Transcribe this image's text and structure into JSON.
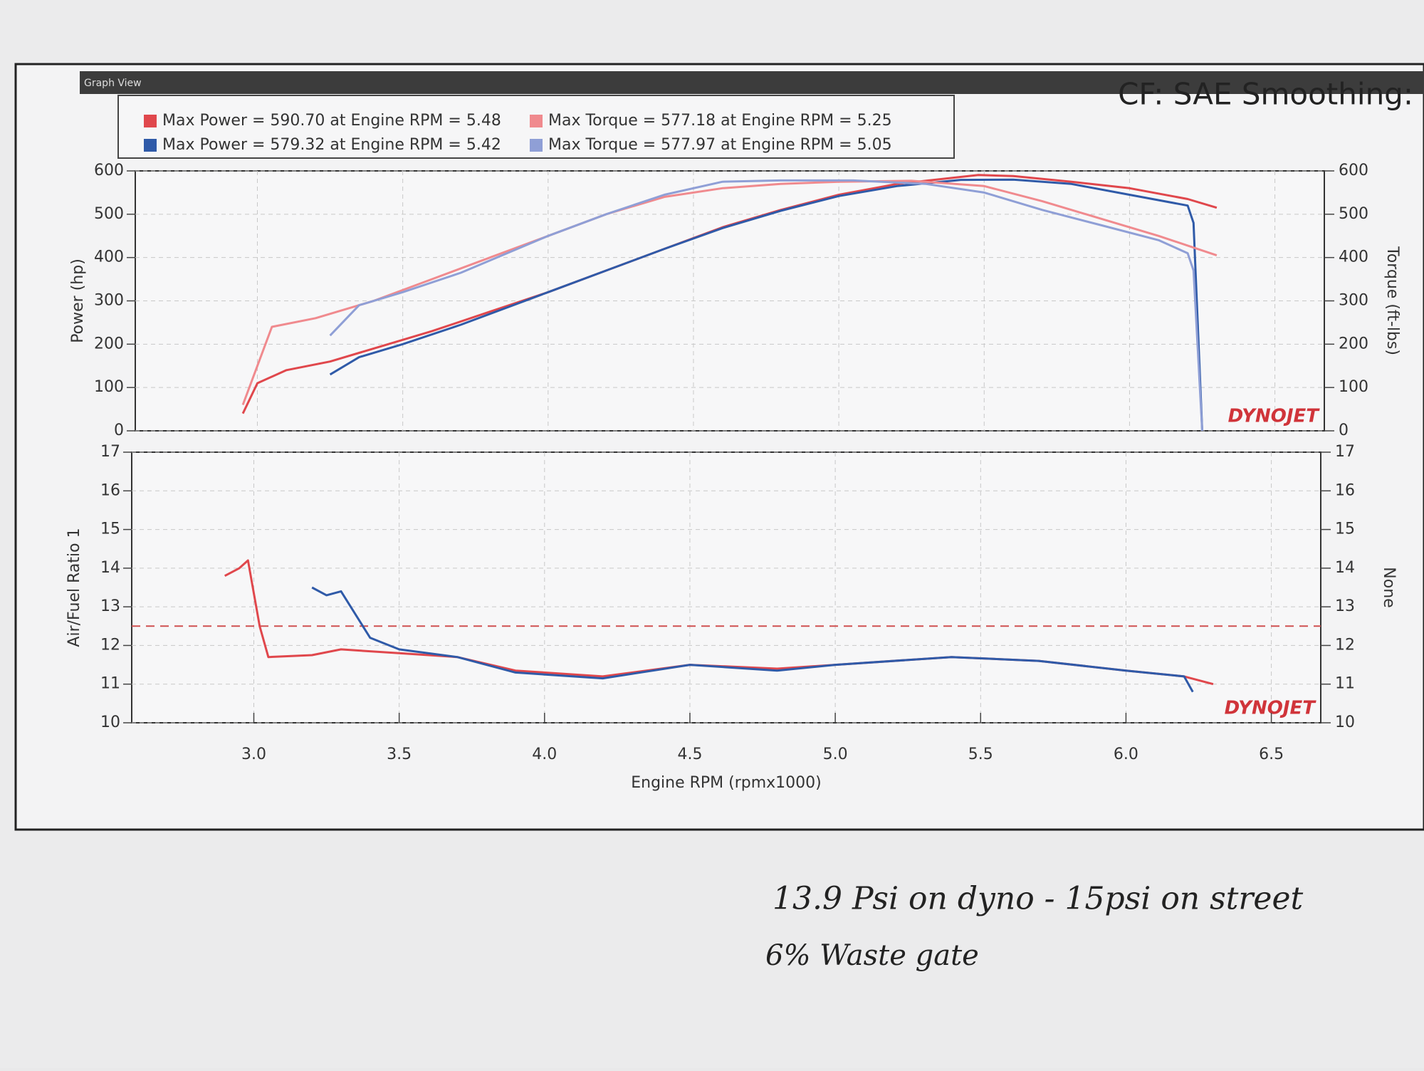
{
  "window_title": "Graph View",
  "header": "CF: SAE Smoothing:",
  "notes": [
    "13.9 Psi on dyno - 15psi on street",
    "6% Waste gate"
  ],
  "chart_data": [
    {
      "type": "line",
      "logo": "DYNOJET",
      "ylabel": "Power (hp)",
      "y2label": "Torque (ft-lbs)",
      "xlim": [
        2.58,
        6.67
      ],
      "ylim": [
        0,
        600
      ],
      "yticks": [
        0,
        100,
        200,
        300,
        400,
        500,
        600
      ],
      "y2lim": [
        0,
        600
      ],
      "y2ticks": [
        0,
        100,
        200,
        300,
        400,
        500,
        600
      ],
      "grid": true,
      "series": [
        {
          "name": "Max Power = 590.70 at Engine RPM = 5.48",
          "color": "#e0474c",
          "x": [
            2.95,
            3.0,
            3.1,
            3.25,
            3.4,
            3.6,
            3.8,
            4.0,
            4.2,
            4.4,
            4.6,
            4.8,
            5.0,
            5.2,
            5.48,
            5.6,
            5.8,
            6.0,
            6.2,
            6.3
          ],
          "values": [
            40,
            110,
            140,
            160,
            190,
            230,
            275,
            320,
            370,
            420,
            470,
            510,
            545,
            570,
            590.7,
            588,
            575,
            560,
            535,
            515
          ]
        },
        {
          "name": "Max Power = 579.32 at Engine RPM = 5.42",
          "color": "#2f5aa8",
          "x": [
            3.25,
            3.35,
            3.5,
            3.7,
            4.0,
            4.2,
            4.4,
            4.6,
            4.8,
            5.0,
            5.2,
            5.42,
            5.6,
            5.8,
            6.0,
            6.2,
            6.22,
            6.25
          ],
          "values": [
            130,
            170,
            200,
            245,
            320,
            370,
            420,
            468,
            508,
            542,
            565,
            579.3,
            580,
            570,
            545,
            520,
            480,
            0
          ]
        },
        {
          "name": "Max Torque = 577.18 at Engine RPM = 5.25",
          "color": "#f08a8e",
          "x": [
            2.95,
            3.05,
            3.2,
            3.4,
            3.6,
            3.8,
            4.0,
            4.2,
            4.4,
            4.6,
            4.8,
            5.0,
            5.25,
            5.5,
            5.7,
            5.9,
            6.1,
            6.3
          ],
          "values": [
            60,
            240,
            260,
            300,
            350,
            400,
            450,
            500,
            540,
            560,
            570,
            575,
            577.2,
            565,
            530,
            490,
            450,
            405
          ]
        },
        {
          "name": "Max Torque = 577.97 at Engine RPM = 5.05",
          "color": "#8f9fd6",
          "x": [
            3.25,
            3.35,
            3.5,
            3.7,
            4.0,
            4.2,
            4.4,
            4.6,
            4.8,
            5.05,
            5.3,
            5.5,
            5.7,
            5.9,
            6.1,
            6.2,
            6.22,
            6.25
          ],
          "values": [
            220,
            290,
            320,
            365,
            450,
            500,
            545,
            575,
            578,
            577.97,
            570,
            550,
            510,
            475,
            440,
            410,
            370,
            0
          ]
        }
      ]
    },
    {
      "type": "line",
      "logo": "DYNOJET",
      "xlabel": "Engine RPM (rpmx1000)",
      "ylabel": "Air/Fuel Ratio 1",
      "y2label": "None",
      "xlim": [
        2.58,
        6.67
      ],
      "xticks": [
        {
          "value": 3,
          "label": "3.0"
        },
        3.5,
        {
          "value": 4,
          "label": "4.0"
        },
        4.5,
        {
          "value": 5,
          "label": "5.0"
        },
        5.5,
        {
          "value": 6,
          "label": "6.0"
        },
        6.5
      ],
      "ylim": [
        10,
        17
      ],
      "yticks": [
        10,
        11,
        12,
        13,
        14,
        15,
        16,
        17
      ],
      "y2lim": [
        10,
        17
      ],
      "y2ticks": [
        10,
        11,
        12,
        13,
        14,
        15,
        16,
        17
      ],
      "grid": true,
      "reference_line": {
        "value": 12.5,
        "color": "#d05050"
      },
      "series": [
        {
          "color": "#e0474c",
          "x": [
            2.9,
            2.95,
            2.98,
            3.02,
            3.05,
            3.2,
            3.3,
            3.5,
            3.7,
            3.9,
            4.2,
            4.5,
            4.8,
            5.0,
            5.4,
            5.7,
            6.0,
            6.2,
            6.3
          ],
          "values": [
            13.8,
            14.0,
            14.2,
            12.5,
            11.7,
            11.75,
            11.9,
            11.8,
            11.7,
            11.35,
            11.2,
            11.5,
            11.4,
            11.5,
            11.7,
            11.6,
            11.35,
            11.2,
            11.0
          ]
        },
        {
          "color": "#2f5aa8",
          "x": [
            3.2,
            3.25,
            3.3,
            3.4,
            3.5,
            3.7,
            3.9,
            4.2,
            4.5,
            4.8,
            5.0,
            5.4,
            5.7,
            6.0,
            6.2,
            6.23
          ],
          "values": [
            13.5,
            13.3,
            13.4,
            12.2,
            11.9,
            11.7,
            11.3,
            11.15,
            11.5,
            11.35,
            11.5,
            11.7,
            11.6,
            11.35,
            11.2,
            10.8
          ]
        }
      ]
    }
  ]
}
